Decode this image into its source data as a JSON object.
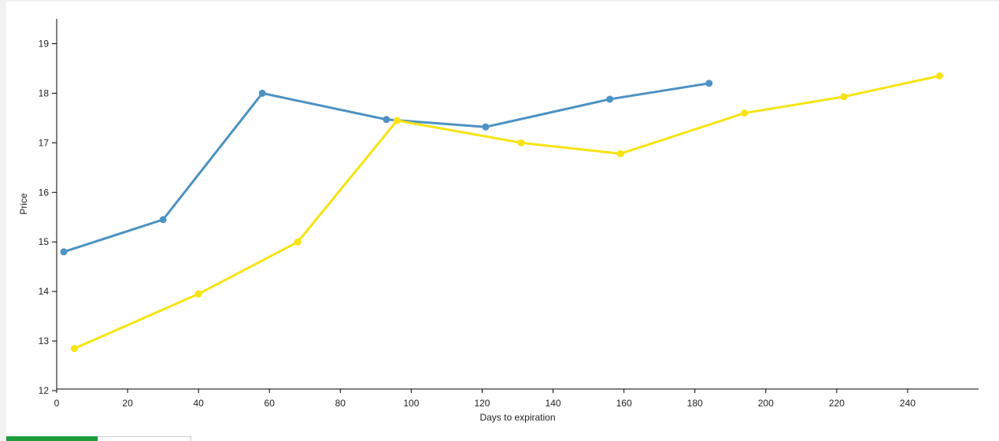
{
  "chart_data": {
    "type": "line",
    "title": "",
    "xlabel": "Days to expiration",
    "ylabel": "Price",
    "xlim": [
      0,
      260
    ],
    "ylim": [
      12,
      19.5
    ],
    "x_ticks": [
      0,
      20,
      40,
      60,
      80,
      100,
      120,
      140,
      160,
      180,
      200,
      220,
      240
    ],
    "y_ticks": [
      12,
      13,
      14,
      15,
      16,
      17,
      18,
      19
    ],
    "grid": false,
    "legend": "none",
    "series": [
      {
        "color": "#4d92c3",
        "x": [
          2,
          30,
          58,
          93,
          121,
          156,
          184
        ],
        "y": [
          14.8,
          15.45,
          18.0,
          17.47,
          17.32,
          17.88,
          18.2
        ]
      },
      {
        "color": "#f7e313",
        "x": [
          5,
          40,
          68,
          96,
          131,
          159,
          194,
          222,
          249
        ],
        "y": [
          12.85,
          13.95,
          15.0,
          17.45,
          17.0,
          16.78,
          17.6,
          17.93,
          18.35
        ]
      }
    ]
  }
}
